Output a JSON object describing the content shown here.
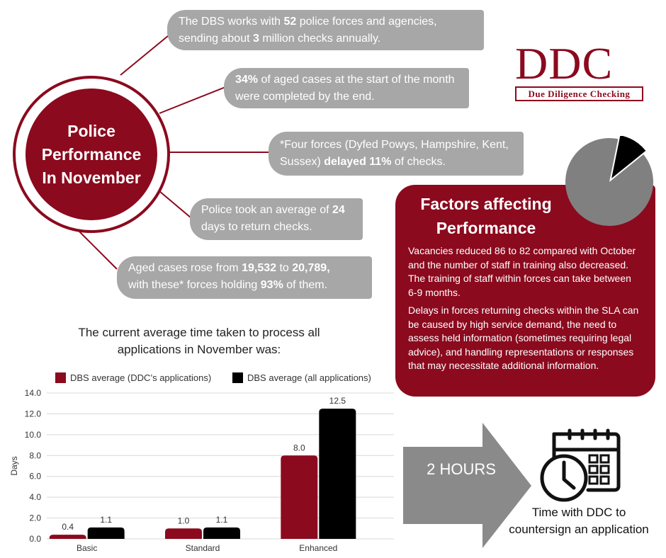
{
  "title": {
    "line1": "Police",
    "line2": "Performance",
    "line3": "In November"
  },
  "logo": {
    "word": "DDC",
    "tagline": "Due Diligence Checking"
  },
  "facts": [
    {
      "t1": "The DBS works with ",
      "b1": "52",
      "t2": " police forces and agencies, sending about ",
      "b2": "3",
      "t3": " million checks annually."
    },
    {
      "b1": "34%",
      "t1": " of aged cases at the start of the month were completed by the end."
    },
    {
      "t1": "*Four forces (Dyfed Powys, Hampshire, Kent, Sussex) ",
      "b1": "delayed 11%",
      "t2": " of checks."
    },
    {
      "t1": "Police took an average of ",
      "b1": "24",
      "t2": " days to return checks."
    },
    {
      "t1": "Aged cases rose from ",
      "b1": "19,532",
      "t2": " to ",
      "b2": "20,789",
      "t3": ",",
      "t4": "with these* forces holding ",
      "b3": "93%",
      "t5": " of them."
    }
  ],
  "pie": {
    "highlight_fraction": 0.11,
    "colors": {
      "main": "#808080",
      "highlight": "#000000"
    }
  },
  "factors": {
    "heading_line1": "Factors affecting",
    "heading_line2": "Performance",
    "p1": "Vacancies reduced 86 to 82 compared with October and the number of staff in training also decreased. The training of staff within forces can take between 6-9 months.",
    "p2": "Delays in forces returning checks within the SLA can be caused by high service demand, the need to assess held information (sometimes requiring legal advice), and handling representations or responses that may necessitate additional information."
  },
  "chart_title": "The current average time taken to process all applications in November was:",
  "chart_data": {
    "type": "bar",
    "categories": [
      "Basic",
      "Standard",
      "Enhanced"
    ],
    "series": [
      {
        "name": "DBS average (DDC's applications)",
        "values": [
          0.4,
          1.0,
          8.0
        ],
        "color": "#8b0a1e"
      },
      {
        "name": "DBS average (all applications)",
        "values": [
          1.1,
          1.1,
          12.5
        ],
        "color": "#000000"
      }
    ],
    "ylabel": "Days",
    "ylim": [
      0,
      14
    ],
    "yticks": [
      "0.0",
      "2.0",
      "4.0",
      "6.0",
      "8.0",
      "10.0",
      "12.0",
      "14.0"
    ],
    "data_labels": [
      [
        "0.4",
        "1.0",
        "8.0"
      ],
      [
        "1.1",
        "1.1",
        "12.5"
      ]
    ],
    "grid": true,
    "legend": "top"
  },
  "legend": {
    "ddc": "DBS average (DDC’s applications)",
    "all": "DBS average (all applications)"
  },
  "arrow_label": "2 HOURS",
  "ddc_caption": {
    "line1": "Time with DDC to",
    "line2": "countersign an application"
  },
  "colors": {
    "brand": "#8b0a1e",
    "pill": "#a7a7a7"
  }
}
